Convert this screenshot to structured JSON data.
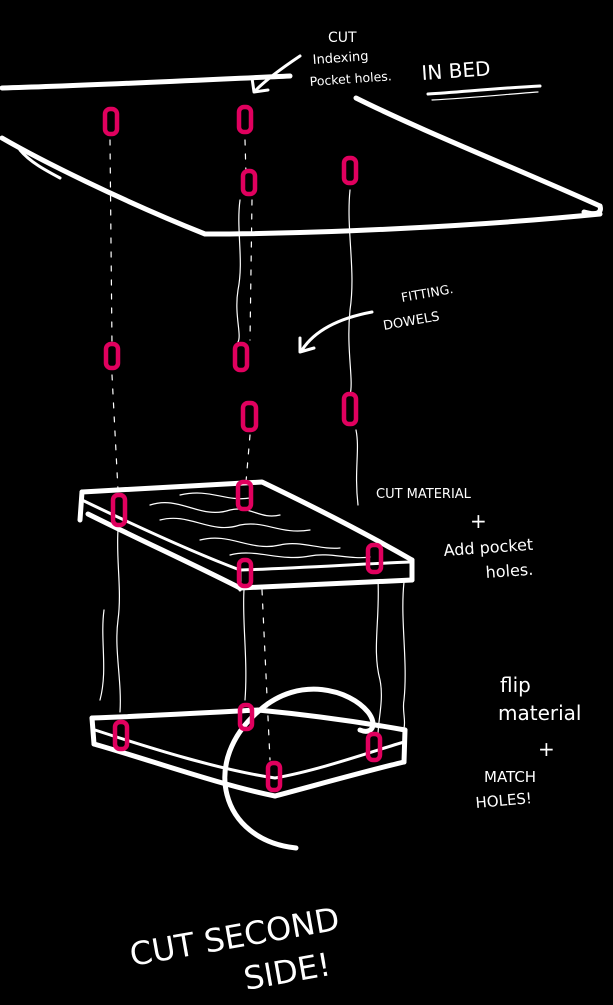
{
  "labels": {
    "cut_line1": "CUT",
    "cut_line2": "Indexing",
    "cut_line3": "Pocket holes.",
    "in_bed": "IN BED",
    "fitting_line1": "FITTING.",
    "fitting_line2": "DOWELS",
    "cut_material": "CUT MATERIAL",
    "plus_1": "+",
    "add_pocket_line1": "Add pocket",
    "add_pocket_line2": "holes.",
    "flip_line1": "flip",
    "flip_line2": "material",
    "plus_2": "+",
    "match_line1": "MATCH",
    "match_line2": "HOLES!",
    "second_side_line1": "CUT SECOND",
    "second_side_line2": "SIDE!"
  },
  "colors": {
    "background": "#000000",
    "ink": "#ffffff",
    "pocket_hole": "#e0005e"
  }
}
